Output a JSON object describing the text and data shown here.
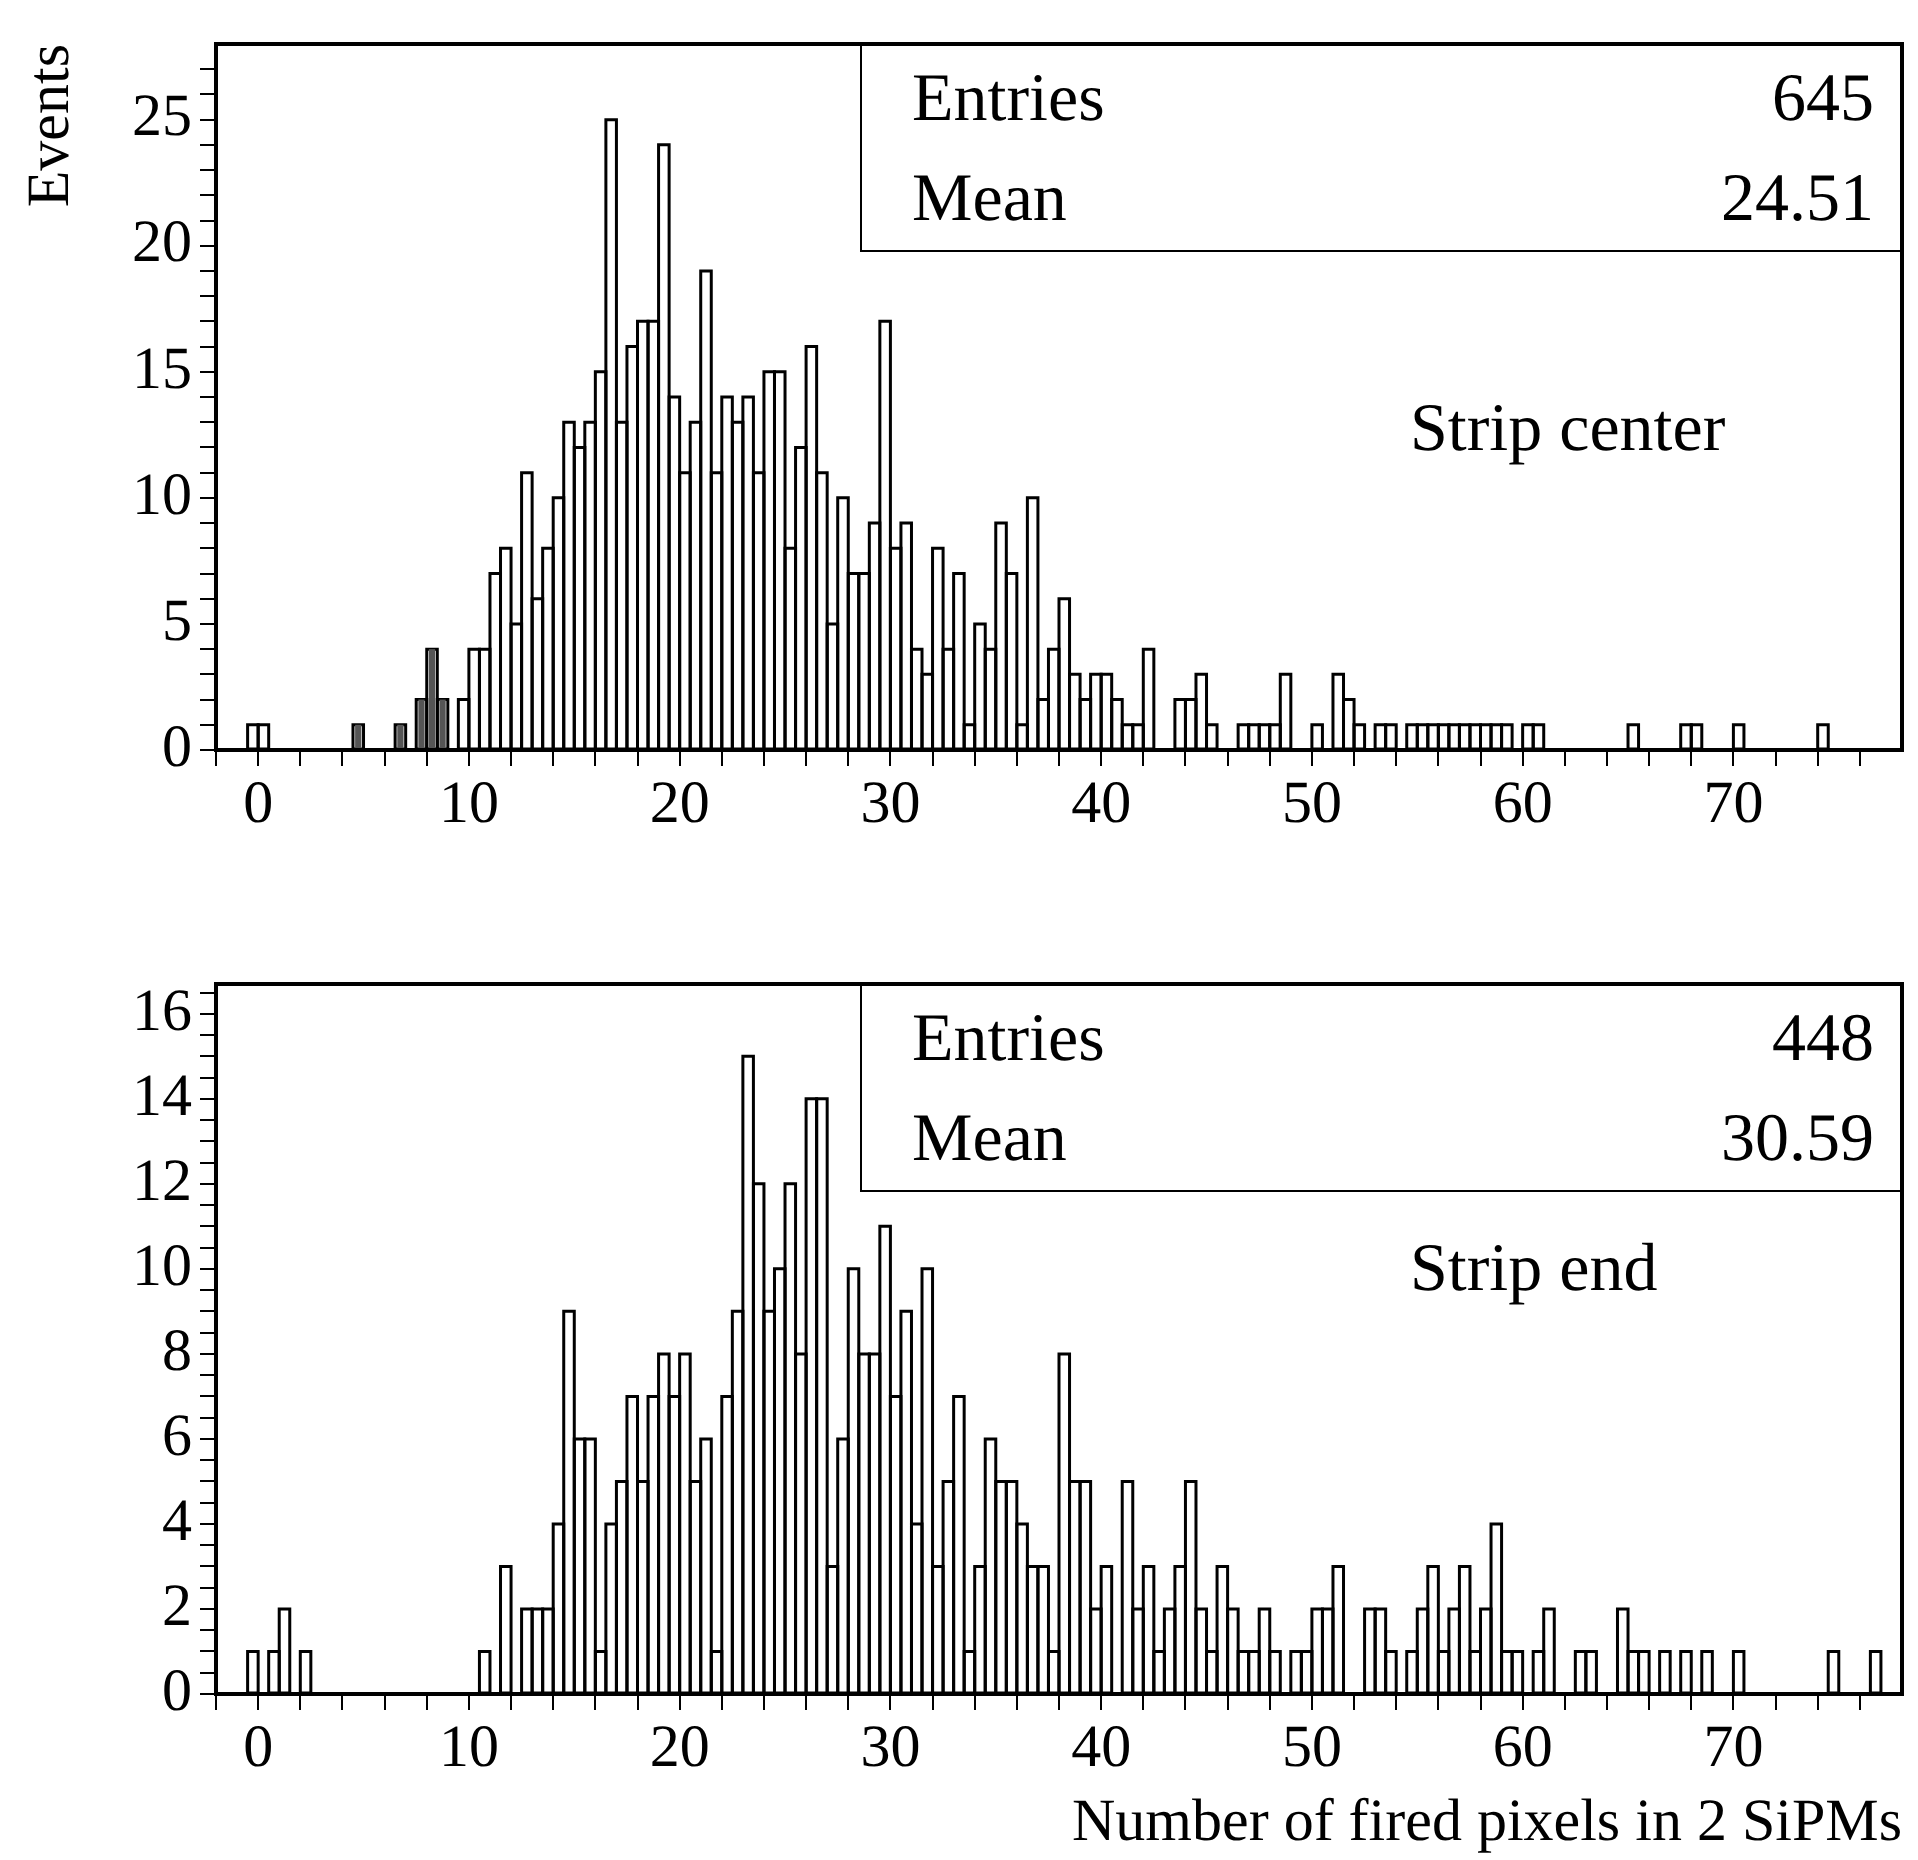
{
  "chart_data": [
    {
      "type": "histogram",
      "ylabel": "Events",
      "bins": [
        -2,
        -1.5,
        -1,
        -0.5,
        0,
        0.5,
        1,
        1.5,
        2,
        2.5,
        3,
        3.5,
        4,
        4.5,
        5,
        5.5,
        6,
        6.5,
        7,
        7.5,
        8,
        8.5,
        9,
        9.5,
        10,
        10.5,
        11,
        11.5,
        12,
        12.5,
        13,
        13.5,
        14,
        14.5,
        15,
        15.5,
        16,
        16.5,
        17,
        17.5,
        18,
        18.5,
        19,
        19.5,
        20,
        20.5,
        21,
        21.5,
        22,
        22.5,
        23,
        23.5,
        24,
        24.5,
        25,
        25.5,
        26,
        26.5,
        27,
        27.5,
        28,
        28.5,
        29,
        29.5,
        30,
        30.5,
        31,
        31.5,
        32,
        32.5,
        33,
        33.5,
        34,
        34.5,
        35,
        35.5,
        36,
        36.5,
        37,
        37.5,
        38,
        38.5,
        39,
        39.5,
        40,
        40.5,
        41,
        41.5,
        42,
        42.5,
        43,
        43.5,
        44,
        44.5,
        45,
        45.5,
        46,
        46.5,
        47,
        47.5,
        48,
        48.5,
        49,
        49.5,
        50,
        50.5,
        51,
        51.5,
        52,
        52.5,
        53,
        53.5,
        54,
        54.5,
        55,
        55.5,
        56,
        56.5,
        57,
        57.5,
        58,
        58.5,
        59,
        59.5,
        60,
        60.5,
        61,
        61.5,
        62,
        62.5,
        63,
        63.5,
        64,
        64.5,
        65,
        65.5,
        66,
        66.5,
        67,
        67.5,
        68,
        68.5,
        69,
        69.5,
        70,
        70.5,
        71,
        71.5,
        72,
        72.5,
        73,
        73.5,
        74,
        74.5,
        75,
        75.5,
        76,
        76.5,
        77,
        77.5,
        78
      ],
      "series": [
        {
          "color": "#000000",
          "values": [
            0,
            0,
            0,
            1,
            1,
            0,
            0,
            0,
            0,
            0,
            0,
            0,
            0,
            1,
            0,
            0,
            0,
            1,
            0,
            2,
            4,
            2,
            0,
            2,
            4,
            4,
            7,
            8,
            5,
            11,
            6,
            8,
            10,
            13,
            12,
            13,
            15,
            25,
            13,
            16,
            17,
            17,
            24,
            14,
            11,
            13,
            19,
            11,
            14,
            13,
            14,
            11,
            15,
            15,
            8,
            12,
            16,
            11,
            5,
            10,
            7,
            7,
            9,
            17,
            8,
            9,
            4,
            3,
            8,
            4,
            7,
            1,
            5,
            4,
            9,
            7,
            1,
            10,
            2,
            4,
            6,
            3,
            2,
            3,
            3,
            2,
            1,
            1,
            4,
            0,
            0,
            2,
            2,
            3,
            1,
            0,
            0,
            1,
            1,
            1,
            1,
            3,
            0,
            0,
            1,
            0,
            3,
            2,
            1,
            0,
            1,
            1,
            0,
            1,
            1,
            1,
            1,
            1,
            1,
            1,
            1,
            1,
            1,
            0,
            1,
            1,
            0,
            0,
            0,
            0,
            0,
            0,
            0,
            0,
            1,
            0,
            0,
            0,
            0,
            1,
            1,
            0,
            0,
            0,
            1,
            0,
            0,
            0,
            0,
            0,
            0,
            0,
            1,
            0,
            0,
            0,
            0,
            0,
            0,
            0
          ]
        },
        {
          "color": "#555555",
          "values": [
            0,
            0,
            0,
            0,
            0,
            0,
            0,
            0,
            0,
            0,
            0,
            0,
            0,
            1,
            0,
            0,
            0,
            1,
            0,
            2,
            4,
            2,
            0,
            0,
            0,
            0,
            0,
            0,
            0,
            0,
            0,
            0,
            0,
            0,
            0,
            0,
            0,
            0,
            0,
            0,
            0,
            0,
            0,
            0,
            0,
            0,
            0,
            0,
            0,
            0,
            0,
            0,
            0,
            0,
            0,
            0,
            0,
            0,
            0,
            0,
            0,
            0,
            0,
            0,
            0,
            0,
            0,
            0,
            0,
            0,
            0,
            0,
            0,
            0,
            0,
            0,
            0,
            0,
            0,
            0,
            0,
            0,
            0,
            0,
            0,
            0,
            0,
            0,
            0,
            0,
            0,
            0,
            0,
            0,
            0,
            0,
            0,
            0,
            0,
            0,
            0,
            0,
            0,
            0,
            0,
            0,
            0,
            0,
            0,
            0,
            0,
            0,
            0,
            0,
            0,
            0,
            0,
            0,
            0,
            0,
            0,
            0,
            0,
            0,
            0,
            0,
            0,
            0,
            0,
            0,
            0,
            0,
            0,
            0,
            0,
            0,
            0,
            0,
            0,
            0,
            0,
            0,
            0,
            0,
            0,
            0,
            0,
            0,
            0,
            0,
            0,
            0,
            0,
            0,
            0,
            0,
            0,
            0,
            0,
            0
          ]
        }
      ],
      "xlim": [
        -2,
        78
      ],
      "xticks": [
        {
          "value": -2,
          "label": null
        },
        0,
        {
          "value": 2,
          "label": null
        },
        {
          "value": 4,
          "label": null
        },
        {
          "value": 6,
          "label": null
        },
        {
          "value": 8,
          "label": null
        },
        10,
        {
          "value": 12,
          "label": null
        },
        {
          "value": 14,
          "label": null
        },
        {
          "value": 16,
          "label": null
        },
        {
          "value": 18,
          "label": null
        },
        20,
        {
          "value": 22,
          "label": null
        },
        {
          "value": 24,
          "label": null
        },
        {
          "value": 26,
          "label": null
        },
        {
          "value": 28,
          "label": null
        },
        30,
        {
          "value": 32,
          "label": null
        },
        {
          "value": 34,
          "label": null
        },
        {
          "value": 36,
          "label": null
        },
        {
          "value": 38,
          "label": null
        },
        40,
        {
          "value": 42,
          "label": null
        },
        {
          "value": 44,
          "label": null
        },
        {
          "value": 46,
          "label": null
        },
        {
          "value": 48,
          "label": null
        },
        50,
        {
          "value": 52,
          "label": null
        },
        {
          "value": 54,
          "label": null
        },
        {
          "value": 56,
          "label": null
        },
        {
          "value": 58,
          "label": null
        },
        60,
        {
          "value": 62,
          "label": null
        },
        {
          "value": 64,
          "label": null
        },
        {
          "value": 66,
          "label": null
        },
        {
          "value": 68,
          "label": null
        },
        70,
        {
          "value": 72,
          "label": null
        },
        {
          "value": 74,
          "label": null
        },
        {
          "value": 76,
          "label": null
        }
      ],
      "ylim": [
        0,
        28
      ],
      "yticks": [
        0,
        {
          "value": 1,
          "label": null
        },
        {
          "value": 2,
          "label": null
        },
        {
          "value": 3,
          "label": null
        },
        {
          "value": 4,
          "label": null
        },
        5,
        {
          "value": 6,
          "label": null
        },
        {
          "value": 7,
          "label": null
        },
        {
          "value": 8,
          "label": null
        },
        {
          "value": 9,
          "label": null
        },
        10,
        {
          "value": 11,
          "label": null
        },
        {
          "value": 12,
          "label": null
        },
        {
          "value": 13,
          "label": null
        },
        {
          "value": 14,
          "label": null
        },
        15,
        {
          "value": 16,
          "label": null
        },
        {
          "value": 17,
          "label": null
        },
        {
          "value": 18,
          "label": null
        },
        {
          "value": 19,
          "label": null
        },
        20,
        {
          "value": 21,
          "label": null
        },
        {
          "value": 22,
          "label": null
        },
        {
          "value": 23,
          "label": null
        },
        {
          "value": 24,
          "label": null
        },
        25,
        {
          "value": 26,
          "label": null
        },
        {
          "value": 27,
          "label": null
        }
      ],
      "annotations": [
        "Entries",
        "645",
        "Mean",
        "24.51",
        "Strip center"
      ]
    },
    {
      "type": "histogram",
      "xlabel": "Number of fired pixels in 2 SiPMs",
      "bins": [
        -2,
        -1.5,
        -1,
        -0.5,
        0,
        0.5,
        1,
        1.5,
        2,
        2.5,
        3,
        3.5,
        4,
        4.5,
        5,
        5.5,
        6,
        6.5,
        7,
        7.5,
        8,
        8.5,
        9,
        9.5,
        10,
        10.5,
        11,
        11.5,
        12,
        12.5,
        13,
        13.5,
        14,
        14.5,
        15,
        15.5,
        16,
        16.5,
        17,
        17.5,
        18,
        18.5,
        19,
        19.5,
        20,
        20.5,
        21,
        21.5,
        22,
        22.5,
        23,
        23.5,
        24,
        24.5,
        25,
        25.5,
        26,
        26.5,
        27,
        27.5,
        28,
        28.5,
        29,
        29.5,
        30,
        30.5,
        31,
        31.5,
        32,
        32.5,
        33,
        33.5,
        34,
        34.5,
        35,
        35.5,
        36,
        36.5,
        37,
        37.5,
        38,
        38.5,
        39,
        39.5,
        40,
        40.5,
        41,
        41.5,
        42,
        42.5,
        43,
        43.5,
        44,
        44.5,
        45,
        45.5,
        46,
        46.5,
        47,
        47.5,
        48,
        48.5,
        49,
        49.5,
        50,
        50.5,
        51,
        51.5,
        52,
        52.5,
        53,
        53.5,
        54,
        54.5,
        55,
        55.5,
        56,
        56.5,
        57,
        57.5,
        58,
        58.5,
        59,
        59.5,
        60,
        60.5,
        61,
        61.5,
        62,
        62.5,
        63,
        63.5,
        64,
        64.5,
        65,
        65.5,
        66,
        66.5,
        67,
        67.5,
        68,
        68.5,
        69,
        69.5,
        70,
        70.5,
        71,
        71.5,
        72,
        72.5,
        73,
        73.5,
        74,
        74.5,
        75,
        75.5,
        76,
        76.5,
        77,
        77.5,
        78
      ],
      "series": [
        {
          "color": "#000000",
          "values": [
            0,
            0,
            0,
            1,
            0,
            1,
            2,
            0,
            1,
            0,
            0,
            0,
            0,
            0,
            0,
            0,
            0,
            0,
            0,
            0,
            0,
            0,
            0,
            0,
            0,
            1,
            0,
            3,
            0,
            2,
            2,
            2,
            4,
            9,
            6,
            6,
            1,
            4,
            5,
            7,
            5,
            7,
            8,
            7,
            8,
            5,
            6,
            1,
            7,
            9,
            15,
            12,
            9,
            10,
            12,
            8,
            14,
            14,
            3,
            6,
            10,
            8,
            8,
            11,
            7,
            9,
            4,
            10,
            3,
            5,
            7,
            1,
            3,
            6,
            5,
            5,
            4,
            3,
            3,
            1,
            8,
            5,
            5,
            2,
            3,
            0,
            5,
            2,
            3,
            1,
            2,
            3,
            5,
            2,
            1,
            3,
            2,
            1,
            1,
            2,
            1,
            0,
            1,
            1,
            2,
            2,
            3,
            0,
            0,
            2,
            2,
            1,
            0,
            1,
            2,
            3,
            1,
            2,
            3,
            1,
            2,
            4,
            1,
            1,
            0,
            1,
            2,
            0,
            0,
            1,
            1,
            0,
            0,
            2,
            1,
            1,
            0,
            1,
            0,
            1,
            0,
            1,
            0,
            0,
            1,
            0,
            0,
            0,
            0,
            0,
            0,
            0,
            0,
            1,
            0,
            0,
            0,
            1,
            0,
            0
          ]
        }
      ],
      "xlim": [
        -2,
        78
      ],
      "xticks": [
        {
          "value": -2,
          "label": null
        },
        0,
        {
          "value": 2,
          "label": null
        },
        {
          "value": 4,
          "label": null
        },
        {
          "value": 6,
          "label": null
        },
        {
          "value": 8,
          "label": null
        },
        10,
        {
          "value": 12,
          "label": null
        },
        {
          "value": 14,
          "label": null
        },
        {
          "value": 16,
          "label": null
        },
        {
          "value": 18,
          "label": null
        },
        20,
        {
          "value": 22,
          "label": null
        },
        {
          "value": 24,
          "label": null
        },
        {
          "value": 26,
          "label": null
        },
        {
          "value": 28,
          "label": null
        },
        30,
        {
          "value": 32,
          "label": null
        },
        {
          "value": 34,
          "label": null
        },
        {
          "value": 36,
          "label": null
        },
        {
          "value": 38,
          "label": null
        },
        40,
        {
          "value": 42,
          "label": null
        },
        {
          "value": 44,
          "label": null
        },
        {
          "value": 46,
          "label": null
        },
        {
          "value": 48,
          "label": null
        },
        50,
        {
          "value": 52,
          "label": null
        },
        {
          "value": 54,
          "label": null
        },
        {
          "value": 56,
          "label": null
        },
        {
          "value": 58,
          "label": null
        },
        60,
        {
          "value": 62,
          "label": null
        },
        {
          "value": 64,
          "label": null
        },
        {
          "value": 66,
          "label": null
        },
        {
          "value": 68,
          "label": null
        },
        70,
        {
          "value": 72,
          "label": null
        },
        {
          "value": 74,
          "label": null
        },
        {
          "value": 76,
          "label": null
        }
      ],
      "ylim": [
        0,
        16.7
      ],
      "yticks": [
        0,
        {
          "value": 0.5,
          "label": null
        },
        {
          "value": 1,
          "label": null
        },
        {
          "value": 1.5,
          "label": null
        },
        2,
        {
          "value": 2.5,
          "label": null
        },
        {
          "value": 3,
          "label": null
        },
        {
          "value": 3.5,
          "label": null
        },
        4,
        {
          "value": 4.5,
          "label": null
        },
        {
          "value": 5,
          "label": null
        },
        {
          "value": 5.5,
          "label": null
        },
        6,
        {
          "value": 6.5,
          "label": null
        },
        {
          "value": 7,
          "label": null
        },
        {
          "value": 7.5,
          "label": null
        },
        8,
        {
          "value": 8.5,
          "label": null
        },
        {
          "value": 9,
          "label": null
        },
        {
          "value": 9.5,
          "label": null
        },
        10,
        {
          "value": 10.5,
          "label": null
        },
        {
          "value": 11,
          "label": null
        },
        {
          "value": 11.5,
          "label": null
        },
        12,
        {
          "value": 12.5,
          "label": null
        },
        {
          "value": 13,
          "label": null
        },
        {
          "value": 13.5,
          "label": null
        },
        14,
        {
          "value": 14.5,
          "label": null
        },
        {
          "value": 15,
          "label": null
        },
        {
          "value": 15.5,
          "label": null
        },
        16,
        {
          "value": 16.5,
          "label": null
        }
      ],
      "annotations": [
        "Entries",
        "448",
        "Mean",
        "30.59",
        "Strip end"
      ]
    }
  ]
}
